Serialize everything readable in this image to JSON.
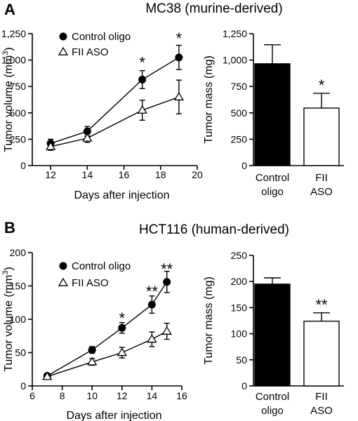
{
  "panels": [
    {
      "letter": "A",
      "title": "MC38 (murine-derived)",
      "line": {
        "type": "line",
        "xlabel": "Days after injection",
        "ylabel": "Tumor volume (mm",
        "ylabel_sup": "3",
        "ylabel_end": ")",
        "xlim": [
          11,
          20
        ],
        "ylim": [
          0,
          1250
        ],
        "xticks": [
          12,
          14,
          16,
          18,
          20
        ],
        "xtick_labels": [
          "12",
          "14",
          "16",
          "18",
          "20"
        ],
        "yticks": [
          0,
          250,
          500,
          750,
          1000,
          1250
        ],
        "ytick_labels": [
          "0",
          "250",
          "500",
          "750",
          "1,000",
          "1,250"
        ],
        "legend_position": "top-left",
        "series": [
          {
            "name": "Control oligo",
            "marker": "filled-circle",
            "x": [
              12,
              14,
              17,
              19
            ],
            "y": [
              210,
              325,
              815,
              1025
            ],
            "err": [
              40,
              45,
              85,
              115
            ]
          },
          {
            "name": "FII ASO",
            "marker": "open-triangle",
            "x": [
              12,
              14,
              17,
              19
            ],
            "y": [
              180,
              260,
              525,
              650
            ],
            "err": [
              35,
              40,
              95,
              160
            ]
          }
        ],
        "annotations": [
          {
            "text": "*",
            "x": 17,
            "y": 995
          },
          {
            "text": "*",
            "x": 19,
            "y": 1225
          }
        ]
      },
      "bar": {
        "type": "bar",
        "ylabel": "Tumor mass (mg)",
        "ylim": [
          0,
          1250
        ],
        "yticks": [
          0,
          250,
          500,
          750,
          1000,
          1250
        ],
        "ytick_labels": [
          "0",
          "250",
          "500",
          "750",
          "1,000",
          "1,250"
        ],
        "categories": [
          [
            "Control",
            "oligo"
          ],
          [
            "FII",
            "ASO"
          ]
        ],
        "values": [
          965,
          545
        ],
        "errors": [
          180,
          140
        ],
        "annotations": [
          {
            "text": "*",
            "bar": 1
          }
        ]
      }
    },
    {
      "letter": "B",
      "title": "HCT116 (human-derived)",
      "line": {
        "type": "line",
        "xlabel": "Days after injection",
        "ylabel": "Tumor volume (mm",
        "ylabel_sup": "3",
        "ylabel_end": ")",
        "xlim": [
          6,
          16
        ],
        "ylim": [
          0,
          200
        ],
        "xticks": [
          6,
          8,
          10,
          12,
          14,
          16
        ],
        "xtick_labels": [
          "6",
          "8",
          "10",
          "12",
          "14",
          "16"
        ],
        "yticks": [
          0,
          50,
          100,
          150,
          200
        ],
        "ytick_labels": [
          "0",
          "50",
          "100",
          "150",
          "200"
        ],
        "legend_position": "top-left",
        "series": [
          {
            "name": "Control oligo",
            "marker": "filled-circle",
            "x": [
              7,
              10,
              12,
              14,
              15
            ],
            "y": [
              15,
              54,
              87,
              122,
              156
            ],
            "err": [
              3,
              5,
              8,
              13,
              16
            ]
          },
          {
            "name": "FII ASO",
            "marker": "open-triangle",
            "x": [
              7,
              10,
              12,
              14,
              15
            ],
            "y": [
              14,
              36,
              50,
              70,
              82
            ],
            "err": [
              3,
              5,
              8,
              11,
              12
            ]
          }
        ],
        "annotations": [
          {
            "text": "*",
            "x": 12,
            "y": 104
          },
          {
            "text": "**",
            "x": 14,
            "y": 144
          },
          {
            "text": "**",
            "x": 15,
            "y": 178
          }
        ]
      },
      "bar": {
        "type": "bar",
        "ylabel": "Tumor mass (mg)",
        "ylim": [
          0,
          250
        ],
        "yticks": [
          0,
          50,
          100,
          150,
          200,
          250
        ],
        "ytick_labels": [
          "0",
          "50",
          "100",
          "150",
          "200",
          "250"
        ],
        "categories": [
          [
            "Control",
            "oligo"
          ],
          [
            "FII",
            "ASO"
          ]
        ],
        "values": [
          195,
          124
        ],
        "errors": [
          12,
          16
        ],
        "annotations": [
          {
            "text": "**",
            "bar": 1
          }
        ]
      }
    }
  ]
}
